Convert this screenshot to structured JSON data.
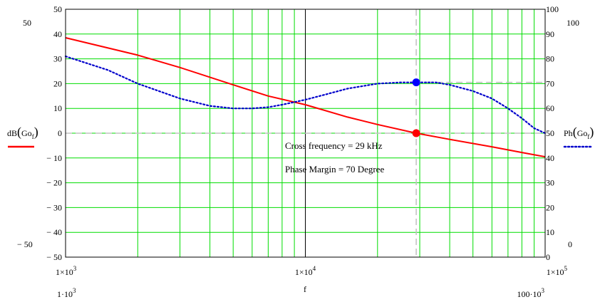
{
  "chart_data": {
    "type": "line",
    "x_scale": "log",
    "xlim": [
      1000,
      100000
    ],
    "xlabel": "f",
    "x_ticks": [
      {
        "value": 1000,
        "label_main": "1×10",
        "label_exp": "3"
      },
      {
        "value": 10000,
        "label_main": "1×10",
        "label_exp": "4"
      },
      {
        "value": 100000,
        "label_main": "1×10",
        "label_exp": "5"
      }
    ],
    "x_range_labels": {
      "left_main": "1·10",
      "left_exp": "3",
      "right_main": "100·10",
      "right_exp": "3"
    },
    "y_left": {
      "lim": [
        -50,
        50
      ],
      "ticks": [
        {
          "value": 50,
          "label": "50"
        },
        {
          "value": 40,
          "label": "40"
        },
        {
          "value": 30,
          "label": "30"
        },
        {
          "value": 20,
          "label": "20"
        },
        {
          "value": 10,
          "label": "10"
        },
        {
          "value": 0,
          "label": "0"
        },
        {
          "value": -10,
          "label": "− 10"
        },
        {
          "value": -20,
          "label": "− 20"
        },
        {
          "value": -30,
          "label": "− 30"
        },
        {
          "value": -40,
          "label": "− 40"
        },
        {
          "value": -50,
          "label": "− 50"
        }
      ],
      "range_top": "50",
      "range_bottom": "− 50",
      "label_main": "dB",
      "label_arg": "Go",
      "label_sub": "f"
    },
    "y_right": {
      "lim": [
        0,
        100
      ],
      "ticks": [
        {
          "value": 100,
          "label": "100"
        },
        {
          "value": 90,
          "label": "90"
        },
        {
          "value": 80,
          "label": "80"
        },
        {
          "value": 70,
          "label": "70"
        },
        {
          "value": 60,
          "label": "60"
        },
        {
          "value": 50,
          "label": "50"
        },
        {
          "value": 40,
          "label": "40"
        },
        {
          "value": 30,
          "label": "30"
        },
        {
          "value": 20,
          "label": "20"
        },
        {
          "value": 10,
          "label": "10"
        },
        {
          "value": 0,
          "label": "0"
        }
      ],
      "range_top": "100",
      "range_bottom": "0",
      "label_main": "Ph",
      "label_arg": "Go",
      "label_sub": "f"
    },
    "series": [
      {
        "axis": "left",
        "color": "#ff0000",
        "style": "solid",
        "x": [
          1000,
          2000,
          3000,
          5000,
          7000,
          10000,
          15000,
          20000,
          29000,
          40000,
          60000,
          80000,
          100000
        ],
        "y": [
          38.5,
          31.5,
          26.5,
          19.5,
          15.0,
          11.5,
          6.5,
          3.5,
          0,
          -2.5,
          -5.5,
          -7.8,
          -9.5
        ]
      },
      {
        "axis": "right",
        "color": "#0000cc",
        "style": "dotted",
        "x": [
          1000,
          1500,
          2000,
          3000,
          4000,
          5000,
          6000,
          7000,
          8000,
          10000,
          12000,
          15000,
          20000,
          25000,
          29000,
          35000,
          40000,
          50000,
          60000,
          70000,
          80000,
          90000,
          100000
        ],
        "y": [
          81,
          75.5,
          70,
          64,
          61,
          60,
          60,
          60.5,
          61.5,
          63.5,
          65.5,
          68,
          70,
          70.5,
          70.5,
          70.5,
          69.5,
          67,
          64,
          60,
          56,
          52,
          50
        ]
      }
    ],
    "markers": [
      {
        "axis": "left",
        "x": 29000,
        "y": 0,
        "color": "#ff0000"
      },
      {
        "axis": "right",
        "x": 29000,
        "y": 70.5,
        "color": "#0000ff"
      }
    ],
    "crosshair": {
      "x": 29000,
      "y_left": 0,
      "y_right": 70.5
    },
    "annotations": [
      "Cross frequency = 29 kHz",
      "Phase Margin = 70 Degree"
    ],
    "grid": true,
    "colors": {
      "grid_minor": "#00dd00",
      "grid_major": "#000000",
      "crosshair": "#c0c0c0",
      "left_series": "#ff0000",
      "right_series": "#0000cc"
    }
  }
}
